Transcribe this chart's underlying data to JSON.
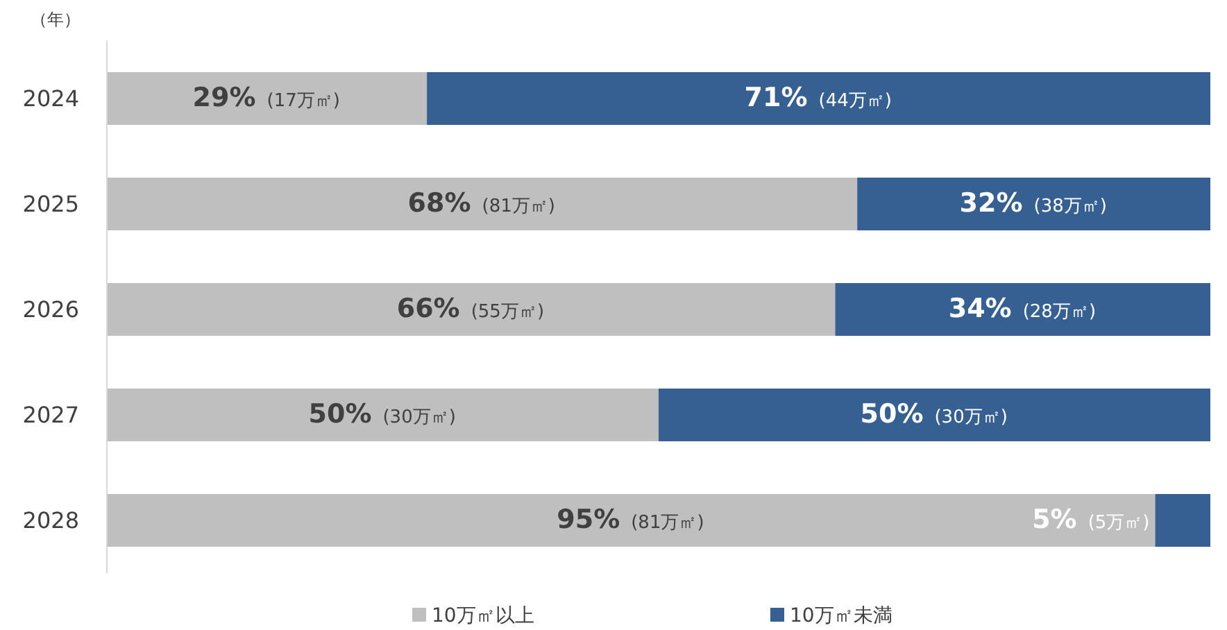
{
  "chart_data": {
    "type": "bar",
    "orientation": "horizontal",
    "stacked": true,
    "ylabel": "（年）",
    "categories": [
      "2024",
      "2025",
      "2026",
      "2027",
      "2028"
    ],
    "xlim": [
      0,
      100
    ],
    "tick_labels": "y",
    "legend": "bottom",
    "series": [
      {
        "name": "10万㎡以上",
        "color": "#bfbfbf",
        "values": [
          29,
          68,
          66,
          50,
          95
        ],
        "value_labels": [
          "29% (17万㎡)",
          "68% (81万㎡)",
          "66% (55万㎡)",
          "50% (30万㎡)",
          "95% (81万㎡)"
        ]
      },
      {
        "name": "10万㎡未満",
        "color": "#366092",
        "values": [
          71,
          32,
          34,
          50,
          5
        ],
        "value_labels": [
          "71% (44万㎡)",
          "32% (38万㎡)",
          "34% (28万㎡)",
          "50% (30万㎡)",
          "5% (5万㎡)"
        ]
      }
    ]
  }
}
